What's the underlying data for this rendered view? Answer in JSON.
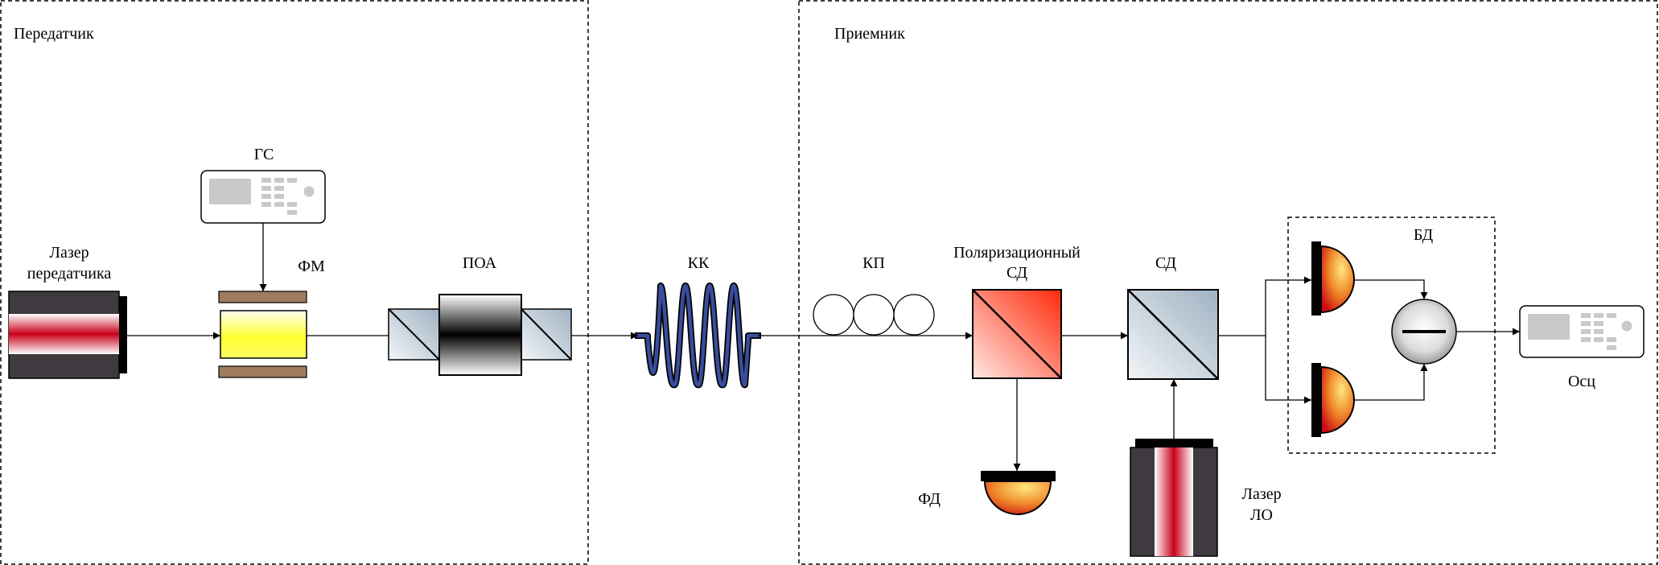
{
  "transmitter": {
    "title": "Передатчик",
    "laser_line1": "Лазер",
    "laser_line2": "передатчика",
    "generator": "ГС",
    "phase_modulator": "ФМ",
    "amplifier": "ПОА"
  },
  "channel": {
    "fiber_coil": "КК"
  },
  "receiver": {
    "title": "Приемник",
    "polarization_controller": "КП",
    "pbs_line1": "Поляризационный",
    "pbs_line2": "СД",
    "splitter": "СД",
    "photodiode": "ФД",
    "lo_line1": "Лазер",
    "lo_line2": "ЛО",
    "balanced_detector": "БД",
    "oscilloscope": "Осц"
  }
}
